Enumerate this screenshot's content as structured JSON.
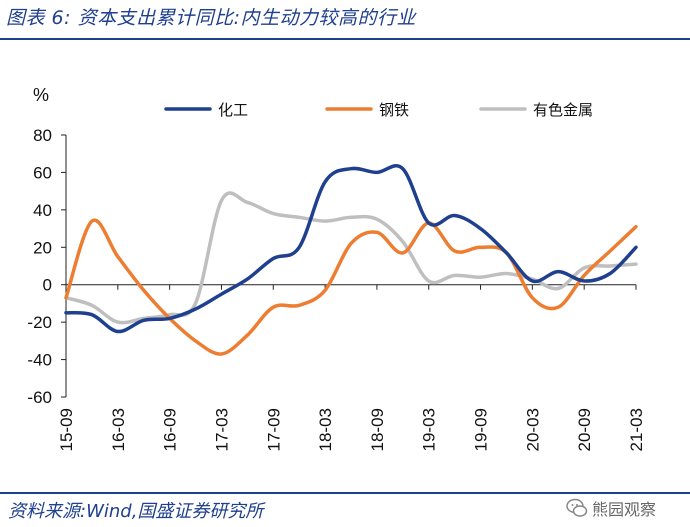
{
  "figure": {
    "title": "图表 6:  资本支出累计同比:内生动力较高的行业",
    "source": "资料来源:Wind,国盛证券研究所",
    "watermark": "熊园观察"
  },
  "chart_data": {
    "type": "line",
    "unit_label": "%",
    "title": "",
    "xlabel": "",
    "ylabel": "",
    "ylim": [
      -60,
      80
    ],
    "yticks": [
      -60,
      -40,
      -20,
      0,
      20,
      40,
      60,
      80
    ],
    "x_tick_labels": [
      "15-09",
      "16-03",
      "16-09",
      "17-03",
      "17-09",
      "18-03",
      "18-09",
      "19-03",
      "19-09",
      "20-03",
      "20-09",
      "21-03"
    ],
    "x": [
      "15-09",
      "15-12",
      "16-03",
      "16-06",
      "16-09",
      "16-12",
      "17-03",
      "17-06",
      "17-09",
      "17-12",
      "18-03",
      "18-06",
      "18-09",
      "18-12",
      "19-03",
      "19-06",
      "19-09",
      "19-12",
      "20-03",
      "20-06",
      "20-09",
      "20-12",
      "21-03"
    ],
    "grid": false,
    "legend_position": "top",
    "series": [
      {
        "name": "化工",
        "color": "#1f3f8f",
        "values": [
          -15,
          -16,
          -25,
          -19,
          -18,
          -13,
          -5,
          3,
          14,
          20,
          55,
          62,
          60,
          62,
          33,
          37,
          30,
          17,
          2,
          7,
          2,
          6,
          20
        ]
      },
      {
        "name": "钢铁",
        "color": "#ed7d31",
        "values": [
          -7,
          34,
          15,
          -3,
          -18,
          -30,
          -37,
          -27,
          -12,
          -11,
          -3,
          22,
          28,
          17,
          33,
          18,
          20,
          17,
          -7,
          -12,
          5,
          18,
          31
        ]
      },
      {
        "name": "有色金属",
        "color": "#bfbfbf",
        "values": [
          -7,
          -11,
          -20,
          -18,
          -16,
          -10,
          45,
          44,
          38,
          36,
          34,
          36,
          35,
          23,
          2,
          5,
          4,
          6,
          3,
          -2,
          9,
          10,
          11
        ]
      }
    ]
  }
}
